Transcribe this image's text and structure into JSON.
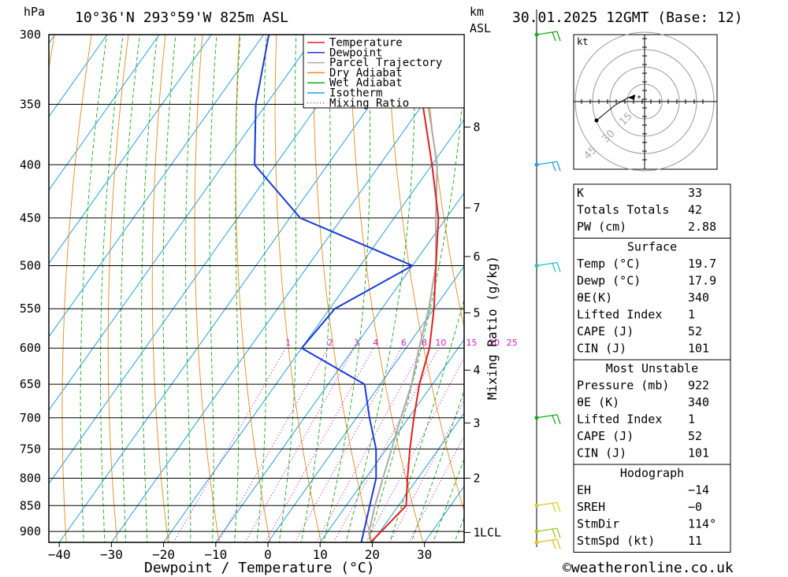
{
  "header": {
    "unit_hpa": "hPa",
    "location": "10°36'N 293°59'W 825m ASL",
    "unit_km": "km",
    "unit_asl": "ASL",
    "datetime": "30.01.2025 12GMT (Base: 12)"
  },
  "footer": {
    "credit": "©weatheronline.co.uk"
  },
  "chart_data": {
    "type": "line",
    "subtype": "skew-T log-P sounding diagram",
    "xlabel": "Dewpoint / Temperature (°C)",
    "ylabel": "hPa",
    "right_axis_label": "Mixing Ratio (g/kg)",
    "x_ticks": [
      -40,
      -30,
      -20,
      -10,
      0,
      10,
      20,
      30
    ],
    "x_tick_labels": [
      "−40",
      "−30",
      "−20",
      "−10",
      "0",
      "10",
      "20",
      "30"
    ],
    "pressure_levels": [
      300,
      350,
      400,
      450,
      500,
      550,
      600,
      650,
      700,
      750,
      800,
      850,
      900
    ],
    "km_ticks": [
      {
        "label": "8",
        "p": 368
      },
      {
        "label": "7",
        "p": 440
      },
      {
        "label": "6",
        "p": 490
      },
      {
        "label": "5",
        "p": 555
      },
      {
        "label": "4",
        "p": 630
      },
      {
        "label": "3",
        "p": 708
      },
      {
        "label": "2",
        "p": 800
      },
      {
        "label": "1",
        "p": 902
      }
    ],
    "lcl_label": "LCL",
    "lcl_pressure": 902,
    "mixing_ratio_labels": [
      "1",
      "2",
      "3",
      "4",
      "6",
      "8",
      "10",
      "15",
      "20",
      "25"
    ],
    "legend": {
      "placement": "top-center",
      "items": [
        {
          "label": "Temperature",
          "color": "#e02020",
          "style": "solid"
        },
        {
          "label": "Dewpoint",
          "color": "#1a3ad8",
          "style": "solid"
        },
        {
          "label": "Parcel Trajectory",
          "color": "#aaaaaa",
          "style": "solid"
        },
        {
          "label": "Dry Adiabat",
          "color": "#e88a1c",
          "style": "solid"
        },
        {
          "label": "Wet Adiabat",
          "color": "#1aa81a",
          "style": "solid"
        },
        {
          "label": "Isotherm",
          "color": "#20a0e0",
          "style": "solid"
        },
        {
          "label": "Mixing Ratio",
          "color": "#d020c0",
          "style": "dotted"
        }
      ]
    },
    "series": [
      {
        "name": "Temperature",
        "color": "#e02020",
        "points": [
          {
            "p": 922,
            "t": 19.7
          },
          {
            "p": 850,
            "t": 21.5
          },
          {
            "p": 800,
            "t": 18.0
          },
          {
            "p": 750,
            "t": 14.5
          },
          {
            "p": 700,
            "t": 11.0
          },
          {
            "p": 650,
            "t": 7.5
          },
          {
            "p": 600,
            "t": 4.5
          },
          {
            "p": 550,
            "t": 0.0
          },
          {
            "p": 500,
            "t": -5.5
          },
          {
            "p": 450,
            "t": -11.5
          },
          {
            "p": 400,
            "t": -20.0
          },
          {
            "p": 350,
            "t": -30.0
          },
          {
            "p": 300,
            "t": -39.5
          }
        ]
      },
      {
        "name": "Dewpoint",
        "color": "#1a3ad8",
        "points": [
          {
            "p": 922,
            "t": 17.9
          },
          {
            "p": 850,
            "t": 14.5
          },
          {
            "p": 800,
            "t": 12.0
          },
          {
            "p": 750,
            "t": 8.0
          },
          {
            "p": 700,
            "t": 2.5
          },
          {
            "p": 650,
            "t": -3.0
          },
          {
            "p": 600,
            "t": -20.0
          },
          {
            "p": 550,
            "t": -19.0
          },
          {
            "p": 500,
            "t": -10.0
          },
          {
            "p": 450,
            "t": -38.0
          },
          {
            "p": 400,
            "t": -54.0
          },
          {
            "p": 350,
            "t": -62.0
          },
          {
            "p": 300,
            "t": -69.0
          }
        ]
      },
      {
        "name": "Parcel Trajectory",
        "color": "#aaaaaa",
        "points": [
          {
            "p": 922,
            "t": 19.7
          },
          {
            "p": 902,
            "t": 18.0
          },
          {
            "p": 850,
            "t": 15.5
          },
          {
            "p": 800,
            "t": 13.3
          },
          {
            "p": 750,
            "t": 11.0
          },
          {
            "p": 700,
            "t": 8.5
          },
          {
            "p": 650,
            "t": 6.0
          },
          {
            "p": 600,
            "t": 2.5
          },
          {
            "p": 550,
            "t": -1.0
          },
          {
            "p": 500,
            "t": -5.5
          },
          {
            "p": 450,
            "t": -12.0
          },
          {
            "p": 400,
            "t": -19.0
          },
          {
            "p": 350,
            "t": -29.0
          },
          {
            "p": 300,
            "t": -41.5
          }
        ]
      }
    ],
    "wind_barbs": [
      {
        "p": 300,
        "color": "#1aa81a"
      },
      {
        "p": 400,
        "color": "#20a0e0"
      },
      {
        "p": 500,
        "color": "#20c0c0"
      },
      {
        "p": 700,
        "color": "#1aa81a"
      },
      {
        "p": 850,
        "color": "#d8d020"
      },
      {
        "p": 900,
        "color": "#a8c820"
      },
      {
        "p": 922,
        "color": "#e8c020"
      }
    ],
    "hodograph": {
      "unit_label": "kt",
      "rings": [
        15,
        30,
        45
      ],
      "ring_labels": [
        "15",
        "30",
        "45"
      ]
    }
  },
  "indices": {
    "top": [
      {
        "label": "K",
        "value": "33"
      },
      {
        "label": "Totals Totals",
        "value": "42"
      },
      {
        "label": "PW (cm)",
        "value": "2.88"
      }
    ],
    "surface": {
      "title": "Surface",
      "rows": [
        {
          "label": "Temp (°C)",
          "value": "19.7"
        },
        {
          "label": "Dewp (°C)",
          "value": "17.9"
        },
        {
          "label": "θE(K)",
          "value": "340"
        },
        {
          "label": "Lifted Index",
          "value": "1"
        },
        {
          "label": "CAPE (J)",
          "value": "52"
        },
        {
          "label": "CIN (J)",
          "value": "101"
        }
      ]
    },
    "most_unstable": {
      "title": "Most Unstable",
      "rows": [
        {
          "label": "Pressure (mb)",
          "value": "922"
        },
        {
          "label": "θE (K)",
          "value": "340"
        },
        {
          "label": "Lifted Index",
          "value": "1"
        },
        {
          "label": "CAPE (J)",
          "value": "52"
        },
        {
          "label": "CIN (J)",
          "value": "101"
        }
      ]
    },
    "hodograph": {
      "title": "Hodograph",
      "rows": [
        {
          "label": "EH",
          "value": "−14"
        },
        {
          "label": "SREH",
          "value": "−0"
        },
        {
          "label": "StmDir",
          "value": "114°"
        },
        {
          "label": "StmSpd (kt)",
          "value": "11"
        }
      ]
    }
  }
}
